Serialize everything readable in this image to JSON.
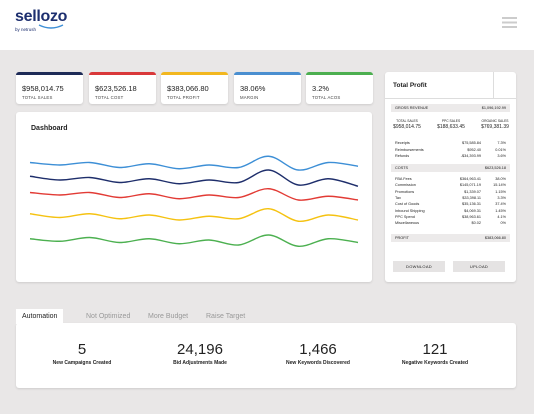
{
  "header": {
    "logo": "sellozo",
    "logo_sub": "by netrush"
  },
  "kpis": [
    {
      "value": "$958,014.75",
      "label": "TOTAL SALES",
      "color": "#1e2b57"
    },
    {
      "value": "$623,526.18",
      "label": "TOTAL COST",
      "color": "#d9383a"
    },
    {
      "value": "$383,066.80",
      "label": "TOTAL PROFIT",
      "color": "#f2b71f"
    },
    {
      "value": "38.06%",
      "label": "MARGIN",
      "color": "#4a8fd0"
    },
    {
      "value": "3.2%",
      "label": "TOTAL ACOS",
      "color": "#4caf50"
    }
  ],
  "chart_data": {
    "type": "line",
    "title": "Dashboard",
    "ylim": [
      0,
      100
    ],
    "series": [
      {
        "color": "#3d8fd6",
        "values": [
          86,
          84,
          86,
          82,
          85,
          81,
          84,
          82,
          91,
          80,
          86,
          83
        ]
      },
      {
        "color": "#1e2e6b",
        "values": [
          75,
          72,
          74,
          70,
          73,
          69,
          72,
          70,
          80,
          68,
          73,
          67
        ]
      },
      {
        "color": "#e23b35",
        "values": [
          62,
          60,
          62,
          58,
          61,
          57,
          60,
          58,
          65,
          56,
          59,
          56
        ]
      },
      {
        "color": "#f5c211",
        "values": [
          45,
          42,
          45,
          41,
          44,
          40,
          43,
          41,
          49,
          39,
          44,
          40
        ]
      },
      {
        "color": "#4cb050",
        "values": [
          25,
          23,
          26,
          22,
          25,
          21,
          24,
          20,
          28,
          19,
          25,
          22
        ]
      }
    ]
  },
  "profit_panel": {
    "title": "Total Profit",
    "gross": {
      "label": "GROSS REVENUE",
      "value": "$1,096,192.99"
    },
    "sales": [
      {
        "label": "TOTAL SALES",
        "value": "$958,014.75"
      },
      {
        "label": "PPC SALES",
        "value": "$188,633.45"
      },
      {
        "label": "ORGANIC SALES",
        "value": "$769,381.39"
      }
    ],
    "adjustments": [
      {
        "label": "Receipts",
        "value": "$75,585.84",
        "pct": "7.3%"
      },
      {
        "label": "Reimbursements",
        "value": "$952.40",
        "pct": "0.01%"
      },
      {
        "label": "Refunds",
        "value": "-$34,393.99",
        "pct": "3.6%"
      }
    ],
    "costs": {
      "label": "COSTS",
      "value": "$623,526.18"
    },
    "cost_items": [
      {
        "label": "FBA Fees",
        "value": "$364,963.41",
        "pct": "38.0%"
      },
      {
        "label": "Commission",
        "value": "$145,071.19",
        "pct": "15.14%"
      },
      {
        "label": "Promotions",
        "value": "$1,339.07",
        "pct": "1.15%"
      },
      {
        "label": "Tax",
        "value": "$33,398.11",
        "pct": "3.3%"
      },
      {
        "label": "Cost of Goods",
        "value": "$35,136.31",
        "pct": "37.4%"
      },
      {
        "label": "Inbound Shipping",
        "value": "$4,069.31",
        "pct": "1.45%"
      },
      {
        "label": "PPC Spend",
        "value": "$38,963.61",
        "pct": "4.1%"
      },
      {
        "label": "Miscellaneous",
        "value": "$0.02",
        "pct": "0%"
      }
    ],
    "profit": {
      "label": "PROFIT",
      "value": "$383,066.80"
    },
    "buttons": [
      "DOWNLOAD",
      "UPLOAD"
    ]
  },
  "tabs": [
    "Automation",
    "Not Optimized",
    "More Budget",
    "Raise Target"
  ],
  "active_tab": 0,
  "stats": [
    {
      "value": "5",
      "label": "New Campaigns Created"
    },
    {
      "value": "24,196",
      "label": "Bid Adjustments Made"
    },
    {
      "value": "1,466",
      "label": "New Keywords Discovered"
    },
    {
      "value": "121",
      "label": "Negative Keywords Created"
    }
  ]
}
